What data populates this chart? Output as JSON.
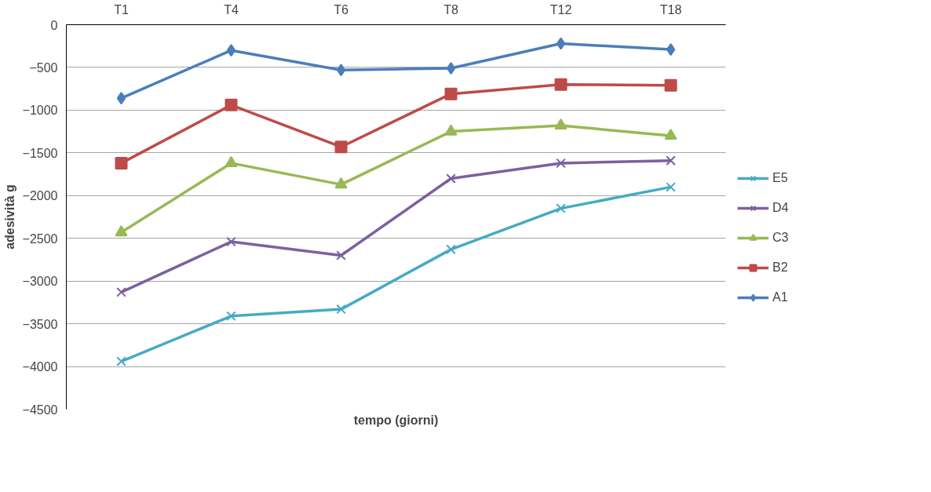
{
  "chart_data": {
    "type": "line",
    "xlabel": "tempo (giorni)",
    "ylabel": "adesività g",
    "categories": [
      "T1",
      "T4",
      "T6",
      "T8",
      "T12",
      "T18"
    ],
    "ylim": [
      -4500,
      0
    ],
    "yticks": [
      -4500,
      -4000,
      -3500,
      -3000,
      -2500,
      -2000,
      -1500,
      -1000,
      -500,
      0
    ],
    "grid": "y",
    "legend": "right",
    "series": [
      {
        "name": "A1",
        "color": "#4a7ebb",
        "marker": "diamond",
        "values": [
          -860,
          -300,
          -530,
          -510,
          -220,
          -290
        ]
      },
      {
        "name": "B2",
        "color": "#be4b48",
        "marker": "square",
        "values": [
          -1620,
          -940,
          -1430,
          -810,
          -700,
          -710
        ]
      },
      {
        "name": "C3",
        "color": "#98b954",
        "marker": "triangle",
        "values": [
          -2430,
          -1620,
          -1870,
          -1250,
          -1180,
          -1300
        ]
      },
      {
        "name": "D4",
        "color": "#7d60a0",
        "marker": "cross",
        "values": [
          -3130,
          -2540,
          -2700,
          -1800,
          -1620,
          -1590
        ]
      },
      {
        "name": "E5",
        "color": "#46aac5",
        "marker": "cross",
        "values": [
          -3940,
          -3410,
          -3330,
          -2630,
          -2150,
          -1900
        ]
      }
    ]
  }
}
